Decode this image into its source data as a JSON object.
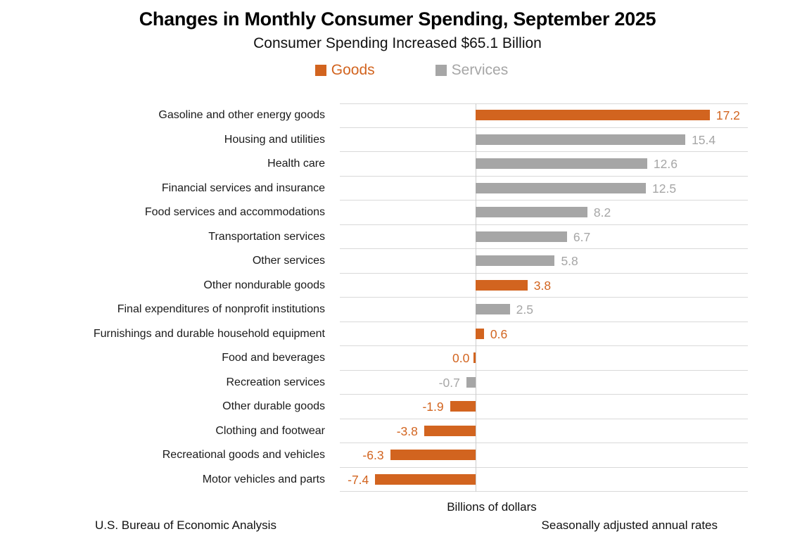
{
  "header": {
    "title": "Changes in Monthly Consumer Spending, September 2025",
    "subtitle": "Consumer Spending Increased $65.1 Billion"
  },
  "legend": {
    "items": [
      {
        "label": "Goods",
        "series": "goods"
      },
      {
        "label": "Services",
        "series": "services"
      }
    ]
  },
  "colors": {
    "goods": "#d2641f",
    "services": "#a6a6a6",
    "gridline": "#d9d9d9",
    "axis_line": "#cccccc"
  },
  "chart_data": {
    "type": "bar",
    "orientation": "horizontal",
    "title": "Changes in Monthly Consumer Spending, September 2025",
    "subtitle": "Consumer Spending Increased $65.1 Billion",
    "xlabel": "Billions of dollars",
    "xlim": [
      -10,
      20
    ],
    "grid": "row-separators-on",
    "legend_position": "top",
    "series_names": [
      "Goods",
      "Services"
    ],
    "points": [
      {
        "category": "Gasoline and other energy goods",
        "value": 17.2,
        "label": "17.2",
        "series": "goods"
      },
      {
        "category": "Housing and utilities",
        "value": 15.4,
        "label": "15.4",
        "series": "services"
      },
      {
        "category": "Health care",
        "value": 12.6,
        "label": "12.6",
        "series": "services"
      },
      {
        "category": "Financial services and insurance",
        "value": 12.5,
        "label": "12.5",
        "series": "services"
      },
      {
        "category": "Food services and accommodations",
        "value": 8.2,
        "label": "8.2",
        "series": "services"
      },
      {
        "category": "Transportation services",
        "value": 6.7,
        "label": "6.7",
        "series": "services"
      },
      {
        "category": "Other services",
        "value": 5.8,
        "label": "5.8",
        "series": "services"
      },
      {
        "category": "Other nondurable goods",
        "value": 3.8,
        "label": "3.8",
        "series": "goods"
      },
      {
        "category": "Final expenditures of nonprofit institutions",
        "value": 2.5,
        "label": "2.5",
        "series": "services"
      },
      {
        "category": "Furnishings and durable household equipment",
        "value": 0.6,
        "label": "0.6",
        "series": "goods"
      },
      {
        "category": "Food and beverages",
        "value": 0.0,
        "label": "0.0",
        "series": "goods"
      },
      {
        "category": "Recreation services",
        "value": -0.7,
        "label": "-0.7",
        "series": "services"
      },
      {
        "category": "Other durable goods",
        "value": -1.9,
        "label": "-1.9",
        "series": "goods"
      },
      {
        "category": "Clothing and footwear",
        "value": -3.8,
        "label": "-3.8",
        "series": "goods"
      },
      {
        "category": "Recreational goods and vehicles",
        "value": -6.3,
        "label": "-6.3",
        "series": "goods"
      },
      {
        "category": "Motor vehicles and parts",
        "value": -7.4,
        "label": "-7.4",
        "series": "goods"
      }
    ]
  },
  "footer": {
    "source": "U.S. Bureau of Economic Analysis",
    "note": "Seasonally adjusted annual rates"
  }
}
